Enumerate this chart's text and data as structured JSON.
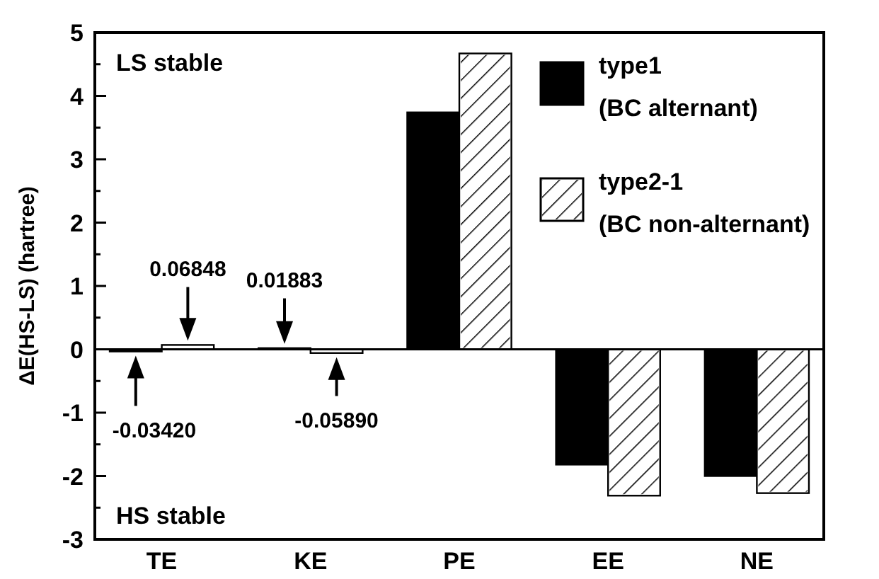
{
  "chart_data": {
    "type": "bar",
    "ylabel": "ΔE(HS-LS) (hartree)",
    "categories": [
      "TE",
      "KE",
      "PE",
      "EE",
      "NE"
    ],
    "series": [
      {
        "name": "type1 (BC alternant)",
        "color": "#000000",
        "values": [
          -0.0342,
          0.01883,
          3.74,
          -1.82,
          -2.0
        ],
        "value_labels": [
          "-0.03420",
          "0.01883",
          null,
          null,
          null
        ]
      },
      {
        "name": "type2-1 (BC non-alternant)",
        "color": "#ffffff",
        "values": [
          0.06848,
          -0.0589,
          4.67,
          -2.31,
          -2.27
        ],
        "value_labels": [
          "0.06848",
          "-0.05890",
          null,
          null,
          null
        ]
      }
    ],
    "ylim": [
      -3,
      5
    ],
    "yticks": [
      -3,
      {
        "value": -2.5,
        "label": null
      },
      -2,
      {
        "value": -1.5,
        "label": null
      },
      -1,
      {
        "value": -0.5,
        "label": null
      },
      0,
      {
        "value": 0.5,
        "label": null
      },
      1,
      {
        "value": 1.5,
        "label": null
      },
      2,
      {
        "value": 2.5,
        "label": null
      },
      3,
      {
        "value": 3.5,
        "label": null
      },
      4,
      {
        "value": 4.5,
        "label": null
      },
      5
    ],
    "annotations": [
      "LS stable",
      "HS stable"
    ],
    "ref_lines": [
      {
        "axis": "y",
        "value": 0
      }
    ],
    "legend": "top right",
    "grid": false
  }
}
